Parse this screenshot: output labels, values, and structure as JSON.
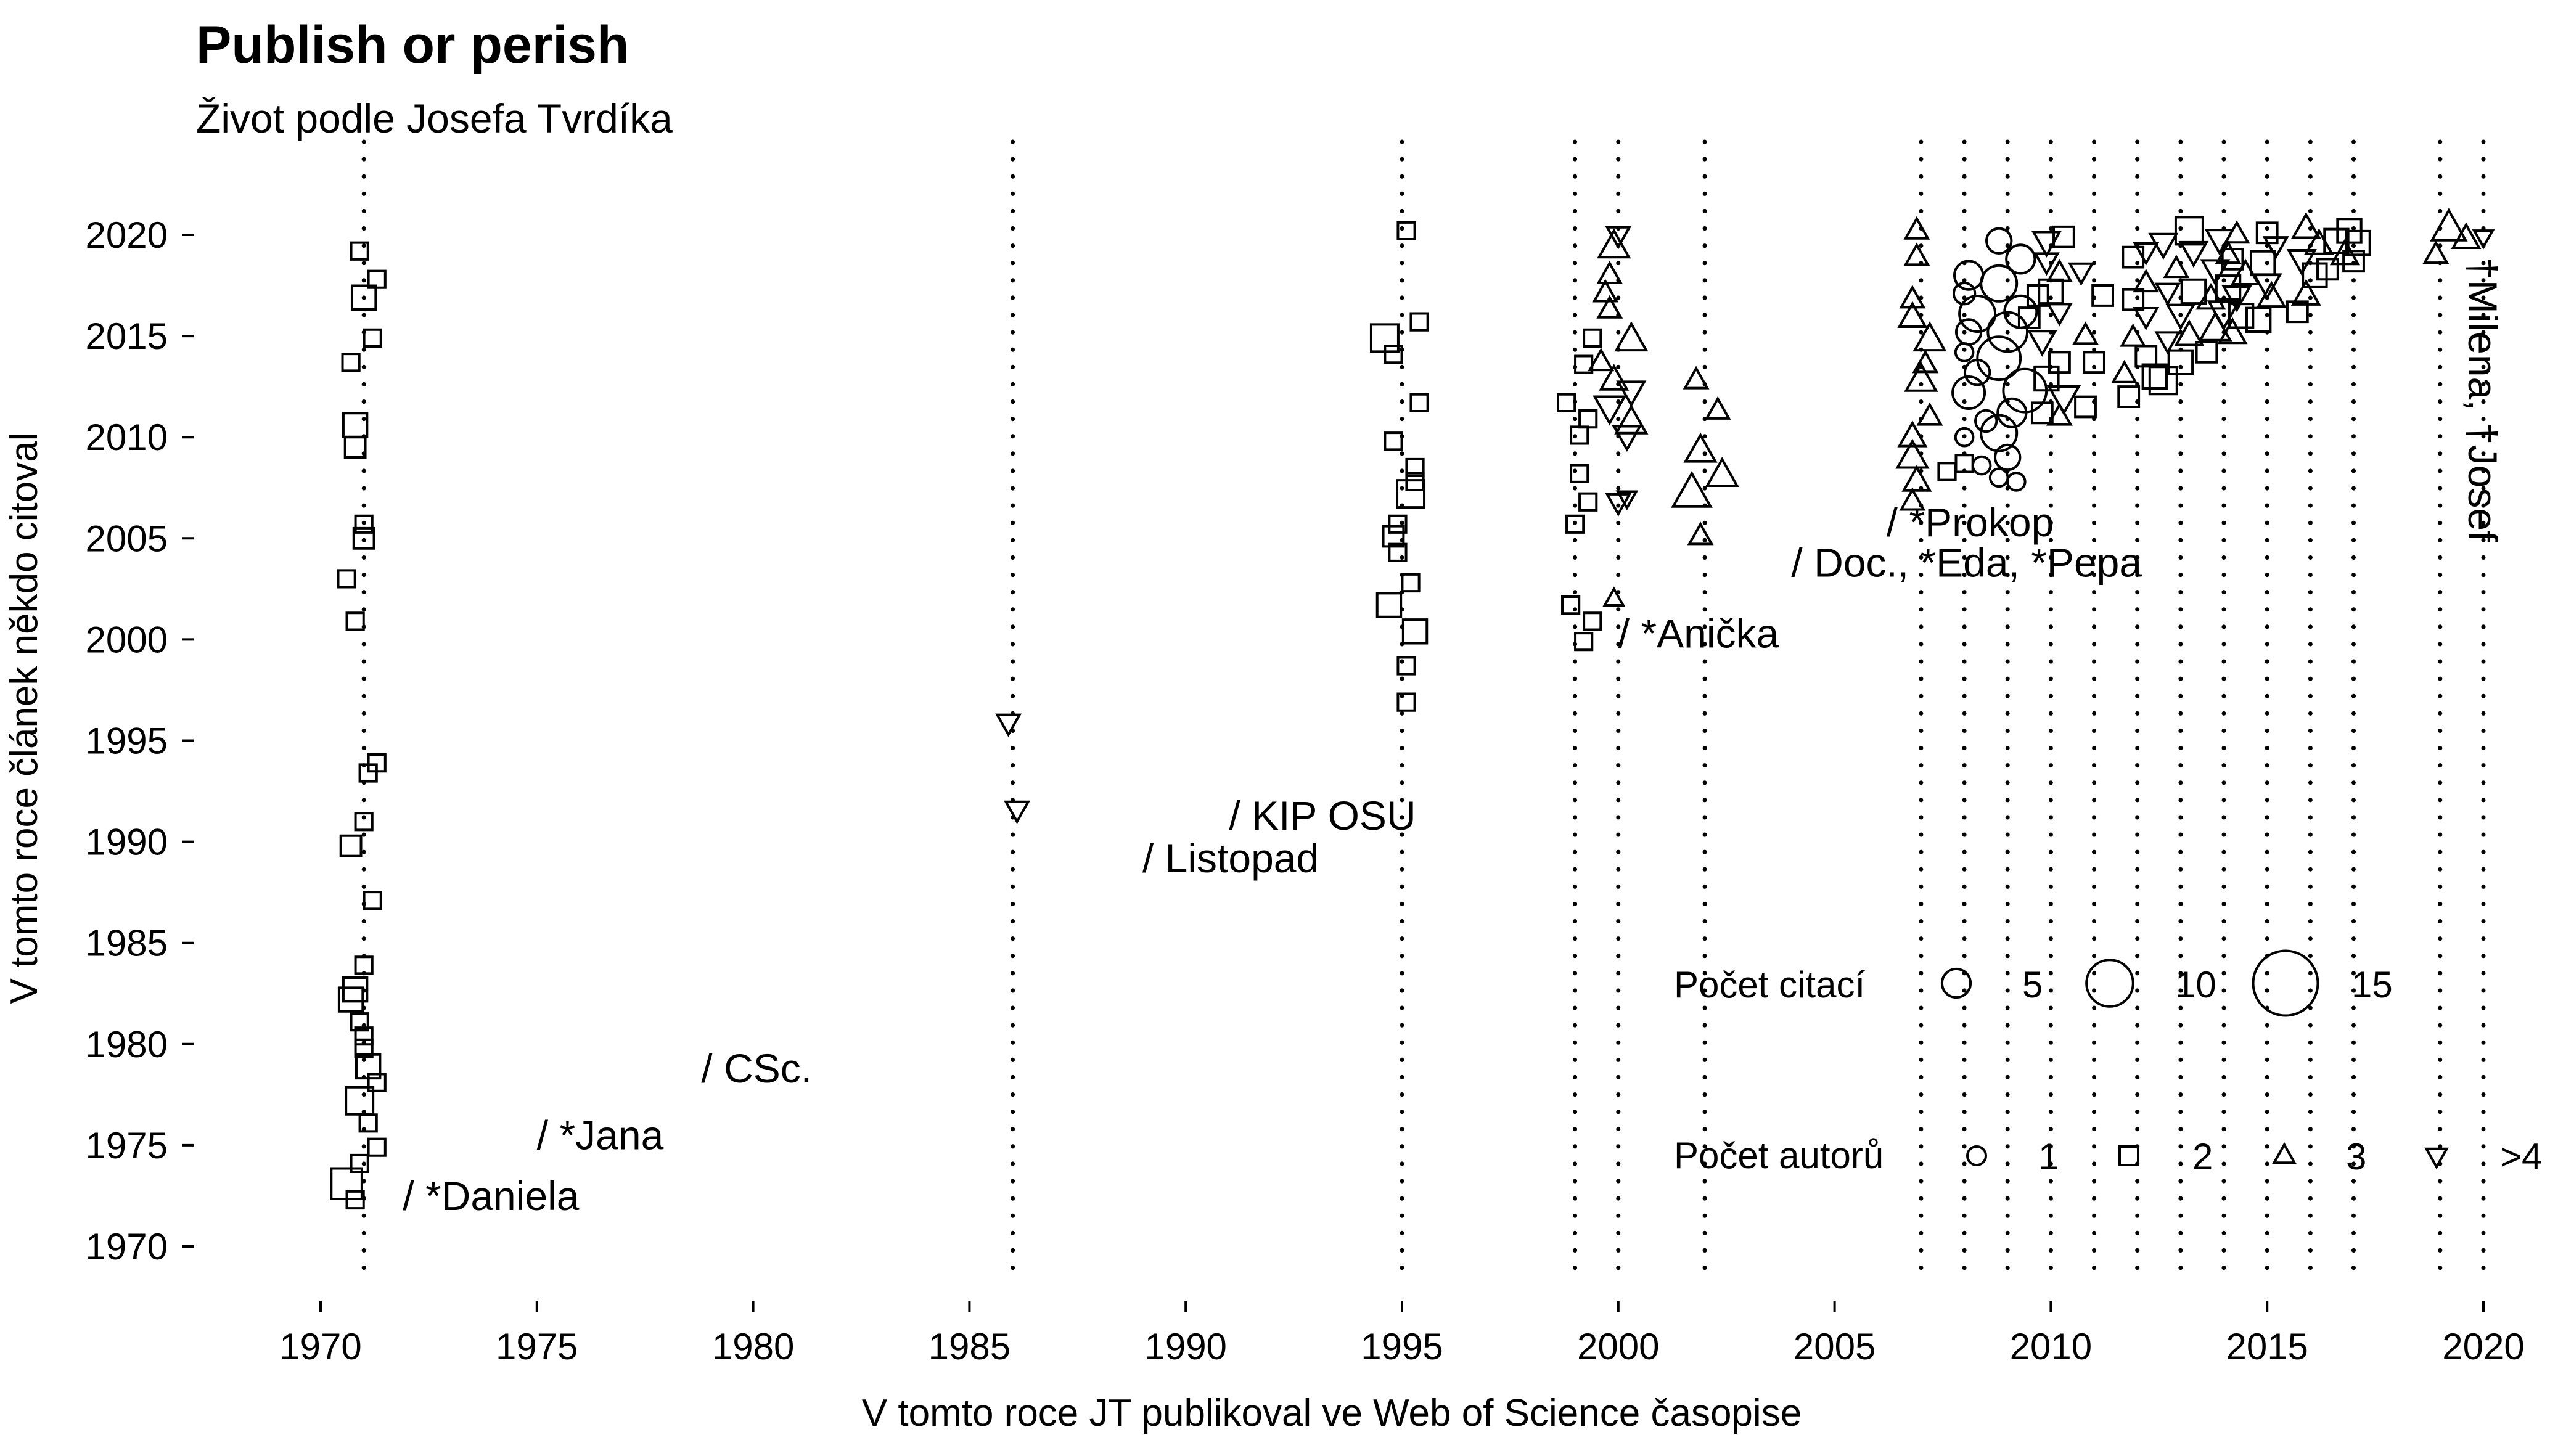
{
  "chart_data": {
    "type": "scatter",
    "title": "Publish or perish",
    "subtitle": "Život podle Josefa Tvrdíka",
    "xlabel": "V tomto roce JT publikoval ve Web of Science časopise",
    "ylabel": "V tomto roce článek někdo citoval",
    "xlim": [
      1967.2,
      2021.2
    ],
    "ylim": [
      1967.5,
      2022.8
    ],
    "xticks": [
      "1970",
      "1975",
      "1980",
      "1985",
      "1990",
      "1995",
      "2000",
      "2005",
      "2010",
      "2015",
      "2020"
    ],
    "yticks": [
      "1970",
      "1975",
      "1980",
      "1985",
      "1990",
      "1995",
      "2000",
      "2005",
      "2010",
      "2015",
      "2020"
    ],
    "grid": false,
    "publication_years": [
      1971,
      1986,
      1995,
      1999,
      2000,
      2002,
      2007,
      2008,
      2009,
      2010,
      2011,
      2012,
      2013,
      2014,
      2015,
      2016,
      2017,
      2019,
      2020
    ],
    "annotations": [
      {
        "x": 1971.9,
        "y": 1971.8,
        "text": "/ *Daniela"
      },
      {
        "x": 1975.0,
        "y": 1974.8,
        "text": "/ *Jana"
      },
      {
        "x": 1978.8,
        "y": 1978.1,
        "text": "/ CSc."
      },
      {
        "x": 1989.0,
        "y": 1988.5,
        "text": "/ Listopad"
      },
      {
        "x": 1991.0,
        "y": 1990.6,
        "text": "/ KIP OSU"
      },
      {
        "x": 2000.0,
        "y": 1999.6,
        "text": "/ *Anička"
      },
      {
        "x": 2006.2,
        "y": 2005.1,
        "text": "/ *Prokop"
      },
      {
        "x": 2004.0,
        "y": 2003.1,
        "text": "/ Doc., *Eda, *Pepa"
      }
    ],
    "vertical_annotation": {
      "x": 2020.0,
      "y": 2018.9,
      "text": "†Milena, †Josef"
    },
    "legend": {
      "placement": "bottom-right",
      "size_title": "Počet citací",
      "size_entries": [
        {
          "label": "5",
          "citations": 5
        },
        {
          "label": "10",
          "citations": 10
        },
        {
          "label": "15",
          "citations": 15
        }
      ],
      "shape_title": "Počet autorů",
      "shape_entries": [
        {
          "label": "1",
          "shape": "circle"
        },
        {
          "label": "2",
          "shape": "square"
        },
        {
          "label": "3",
          "shape": "triangle"
        },
        {
          "label": ">4",
          "shape": "triangle-down"
        }
      ]
    },
    "points": [
      {
        "x": 1970.8,
        "y": 1972.3,
        "a": 2,
        "c": 2
      },
      {
        "x": 1970.6,
        "y": 1973.1,
        "a": 2,
        "c": 6
      },
      {
        "x": 1970.9,
        "y": 1974.1,
        "a": 2,
        "c": 2
      },
      {
        "x": 1971.3,
        "y": 1974.9,
        "a": 2,
        "c": 2
      },
      {
        "x": 1971.1,
        "y": 1976.1,
        "a": 2,
        "c": 2
      },
      {
        "x": 1970.9,
        "y": 1977.2,
        "a": 2,
        "c": 5
      },
      {
        "x": 1971.3,
        "y": 1978.1,
        "a": 2,
        "c": 2
      },
      {
        "x": 1971.1,
        "y": 1978.9,
        "a": 2,
        "c": 4
      },
      {
        "x": 1971.0,
        "y": 1979.8,
        "a": 2,
        "c": 2
      },
      {
        "x": 1971.0,
        "y": 1980.4,
        "a": 2,
        "c": 2
      },
      {
        "x": 1970.9,
        "y": 1981.1,
        "a": 2,
        "c": 2
      },
      {
        "x": 1970.7,
        "y": 1982.2,
        "a": 2,
        "c": 4
      },
      {
        "x": 1970.8,
        "y": 1982.7,
        "a": 2,
        "c": 4
      },
      {
        "x": 1971.0,
        "y": 1983.9,
        "a": 2,
        "c": 2
      },
      {
        "x": 1971.2,
        "y": 1987.1,
        "a": 2,
        "c": 2
      },
      {
        "x": 1970.7,
        "y": 1989.8,
        "a": 2,
        "c": 3
      },
      {
        "x": 1971.0,
        "y": 1991.0,
        "a": 2,
        "c": 2
      },
      {
        "x": 1971.1,
        "y": 1993.4,
        "a": 2,
        "c": 2
      },
      {
        "x": 1971.3,
        "y": 1993.9,
        "a": 2,
        "c": 2
      },
      {
        "x": 1970.8,
        "y": 2000.9,
        "a": 2,
        "c": 2
      },
      {
        "x": 1970.6,
        "y": 2003.0,
        "a": 2,
        "c": 2
      },
      {
        "x": 1971.0,
        "y": 2005.0,
        "a": 2,
        "c": 3
      },
      {
        "x": 1971.0,
        "y": 2005.7,
        "a": 2,
        "c": 2
      },
      {
        "x": 1970.8,
        "y": 2009.5,
        "a": 2,
        "c": 3
      },
      {
        "x": 1970.8,
        "y": 2010.6,
        "a": 2,
        "c": 4
      },
      {
        "x": 1970.7,
        "y": 2013.7,
        "a": 2,
        "c": 2
      },
      {
        "x": 1971.2,
        "y": 2014.9,
        "a": 2,
        "c": 2
      },
      {
        "x": 1971.0,
        "y": 2016.9,
        "a": 2,
        "c": 4
      },
      {
        "x": 1971.3,
        "y": 2017.8,
        "a": 2,
        "c": 2
      },
      {
        "x": 1970.9,
        "y": 2019.2,
        "a": 2,
        "c": 2
      },
      {
        "x": 1985.9,
        "y": 1995.9,
        "a": 4,
        "c": 3
      },
      {
        "x": 1986.1,
        "y": 1991.6,
        "a": 4,
        "c": 3
      },
      {
        "x": 1995.1,
        "y": 1996.9,
        "a": 2,
        "c": 2
      },
      {
        "x": 1995.1,
        "y": 1998.7,
        "a": 2,
        "c": 2
      },
      {
        "x": 1995.3,
        "y": 2000.4,
        "a": 2,
        "c": 4
      },
      {
        "x": 1994.7,
        "y": 2001.7,
        "a": 2,
        "c": 4
      },
      {
        "x": 1995.2,
        "y": 2002.8,
        "a": 2,
        "c": 2
      },
      {
        "x": 1994.9,
        "y": 2004.3,
        "a": 2,
        "c": 2
      },
      {
        "x": 1994.8,
        "y": 2005.1,
        "a": 2,
        "c": 3
      },
      {
        "x": 1994.9,
        "y": 2005.7,
        "a": 2,
        "c": 2
      },
      {
        "x": 1995.2,
        "y": 2007.2,
        "a": 2,
        "c": 5
      },
      {
        "x": 1995.3,
        "y": 2007.8,
        "a": 2,
        "c": 2
      },
      {
        "x": 1995.3,
        "y": 2008.5,
        "a": 2,
        "c": 2
      },
      {
        "x": 1994.8,
        "y": 2009.8,
        "a": 2,
        "c": 2
      },
      {
        "x": 1995.4,
        "y": 2011.7,
        "a": 2,
        "c": 2
      },
      {
        "x": 1994.8,
        "y": 2014.1,
        "a": 2,
        "c": 2
      },
      {
        "x": 1994.6,
        "y": 2014.9,
        "a": 2,
        "c": 5
      },
      {
        "x": 1995.4,
        "y": 2015.7,
        "a": 2,
        "c": 2
      },
      {
        "x": 1995.1,
        "y": 2020.2,
        "a": 2,
        "c": 2
      },
      {
        "x": 1998.9,
        "y": 2001.7,
        "a": 2,
        "c": 2
      },
      {
        "x": 1999.2,
        "y": 1999.9,
        "a": 2,
        "c": 2
      },
      {
        "x": 1999.4,
        "y": 2000.9,
        "a": 2,
        "c": 2
      },
      {
        "x": 1999.0,
        "y": 2005.7,
        "a": 2,
        "c": 2
      },
      {
        "x": 1999.3,
        "y": 2006.8,
        "a": 2,
        "c": 2
      },
      {
        "x": 1999.1,
        "y": 2008.2,
        "a": 2,
        "c": 2
      },
      {
        "x": 1999.1,
        "y": 2010.1,
        "a": 2,
        "c": 2
      },
      {
        "x": 1999.3,
        "y": 2010.9,
        "a": 2,
        "c": 2
      },
      {
        "x": 1998.8,
        "y": 2011.7,
        "a": 2,
        "c": 2
      },
      {
        "x": 1999.2,
        "y": 2013.6,
        "a": 2,
        "c": 2
      },
      {
        "x": 1999.4,
        "y": 2014.9,
        "a": 2,
        "c": 2
      },
      {
        "x": 1999.9,
        "y": 2002.0,
        "a": 3,
        "c": 2
      },
      {
        "x": 2000.0,
        "y": 2006.8,
        "a": 4,
        "c": 3
      },
      {
        "x": 2000.2,
        "y": 2007.0,
        "a": 4,
        "c": 2
      },
      {
        "x": 2000.2,
        "y": 2010.1,
        "a": 4,
        "c": 4
      },
      {
        "x": 2000.3,
        "y": 2010.7,
        "a": 3,
        "c": 5
      },
      {
        "x": 1999.8,
        "y": 2011.5,
        "a": 4,
        "c": 5
      },
      {
        "x": 2000.3,
        "y": 2012.3,
        "a": 4,
        "c": 4
      },
      {
        "x": 1999.9,
        "y": 2012.8,
        "a": 3,
        "c": 4
      },
      {
        "x": 1999.6,
        "y": 2013.7,
        "a": 3,
        "c": 3
      },
      {
        "x": 2000.3,
        "y": 2014.8,
        "a": 3,
        "c": 5
      },
      {
        "x": 1999.8,
        "y": 2016.3,
        "a": 3,
        "c": 3
      },
      {
        "x": 1999.7,
        "y": 2017.1,
        "a": 3,
        "c": 3
      },
      {
        "x": 1999.8,
        "y": 2018.0,
        "a": 3,
        "c": 3
      },
      {
        "x": 1999.9,
        "y": 2019.4,
        "a": 3,
        "c": 5
      },
      {
        "x": 2000.0,
        "y": 2020.0,
        "a": 4,
        "c": 3
      },
      {
        "x": 2001.9,
        "y": 2005.1,
        "a": 3,
        "c": 3
      },
      {
        "x": 2001.7,
        "y": 2007.2,
        "a": 3,
        "c": 7
      },
      {
        "x": 2002.4,
        "y": 2008.1,
        "a": 3,
        "c": 5
      },
      {
        "x": 2001.9,
        "y": 2009.3,
        "a": 3,
        "c": 5
      },
      {
        "x": 2002.3,
        "y": 2011.3,
        "a": 3,
        "c": 3
      },
      {
        "x": 2001.8,
        "y": 2012.8,
        "a": 3,
        "c": 3
      },
      {
        "x": 2006.8,
        "y": 2006.8,
        "a": 3,
        "c": 3
      },
      {
        "x": 2006.9,
        "y": 2007.8,
        "a": 3,
        "c": 4
      },
      {
        "x": 2006.8,
        "y": 2009.0,
        "a": 3,
        "c": 5
      },
      {
        "x": 2006.8,
        "y": 2010.0,
        "a": 3,
        "c": 4
      },
      {
        "x": 2007.2,
        "y": 2011.0,
        "a": 3,
        "c": 3
      },
      {
        "x": 2007.0,
        "y": 2012.8,
        "a": 3,
        "c": 5
      },
      {
        "x": 2007.1,
        "y": 2013.6,
        "a": 3,
        "c": 3
      },
      {
        "x": 2007.2,
        "y": 2014.8,
        "a": 3,
        "c": 5
      },
      {
        "x": 2006.8,
        "y": 2015.9,
        "a": 3,
        "c": 4
      },
      {
        "x": 2006.8,
        "y": 2016.8,
        "a": 3,
        "c": 3
      },
      {
        "x": 2006.9,
        "y": 2018.9,
        "a": 3,
        "c": 3
      },
      {
        "x": 2006.9,
        "y": 2020.2,
        "a": 3,
        "c": 3
      },
      {
        "x": 2007.6,
        "y": 2008.3,
        "a": 2,
        "c": 2
      },
      {
        "x": 2008.0,
        "y": 2008.7,
        "a": 2,
        "c": 2
      },
      {
        "x": 2008.0,
        "y": 2010.0,
        "a": 1,
        "c": 2
      },
      {
        "x": 2008.4,
        "y": 2008.6,
        "a": 1,
        "c": 2
      },
      {
        "x": 2008.8,
        "y": 2008.0,
        "a": 1,
        "c": 2
      },
      {
        "x": 2008.5,
        "y": 2010.8,
        "a": 1,
        "c": 3
      },
      {
        "x": 2008.1,
        "y": 2012.2,
        "a": 1,
        "c": 6
      },
      {
        "x": 2008.3,
        "y": 2013.2,
        "a": 1,
        "c": 4
      },
      {
        "x": 2008.0,
        "y": 2014.2,
        "a": 1,
        "c": 2
      },
      {
        "x": 2008.1,
        "y": 2015.2,
        "a": 1,
        "c": 4
      },
      {
        "x": 2008.3,
        "y": 2016.1,
        "a": 1,
        "c": 7
      },
      {
        "x": 2008.0,
        "y": 2017.1,
        "a": 1,
        "c": 3
      },
      {
        "x": 2008.1,
        "y": 2018.0,
        "a": 1,
        "c": 5
      },
      {
        "x": 2009.2,
        "y": 2007.8,
        "a": 1,
        "c": 2
      },
      {
        "x": 2009.0,
        "y": 2009.0,
        "a": 1,
        "c": 4
      },
      {
        "x": 2008.8,
        "y": 2010.2,
        "a": 1,
        "c": 7
      },
      {
        "x": 2009.1,
        "y": 2011.2,
        "a": 1,
        "c": 5
      },
      {
        "x": 2009.4,
        "y": 2012.3,
        "a": 1,
        "c": 9
      },
      {
        "x": 2008.8,
        "y": 2013.9,
        "a": 1,
        "c": 9
      },
      {
        "x": 2009.0,
        "y": 2015.2,
        "a": 1,
        "c": 8
      },
      {
        "x": 2009.3,
        "y": 2016.2,
        "a": 1,
        "c": 6
      },
      {
        "x": 2008.8,
        "y": 2017.6,
        "a": 1,
        "c": 7
      },
      {
        "x": 2009.3,
        "y": 2018.8,
        "a": 1,
        "c": 5
      },
      {
        "x": 2008.8,
        "y": 2019.7,
        "a": 1,
        "c": 4
      },
      {
        "x": 2009.5,
        "y": 2015.9,
        "a": 2,
        "c": 3
      },
      {
        "x": 2009.8,
        "y": 2011.2,
        "a": 2,
        "c": 3
      },
      {
        "x": 2009.7,
        "y": 2017.0,
        "a": 2,
        "c": 3
      },
      {
        "x": 2009.9,
        "y": 2018.7,
        "a": 4,
        "c": 3
      },
      {
        "x": 2010.2,
        "y": 2011.0,
        "a": 3,
        "c": 3
      },
      {
        "x": 2010.3,
        "y": 2012.0,
        "a": 4,
        "c": 5
      },
      {
        "x": 2009.9,
        "y": 2012.9,
        "a": 2,
        "c": 4
      },
      {
        "x": 2010.2,
        "y": 2013.7,
        "a": 2,
        "c": 3
      },
      {
        "x": 2009.8,
        "y": 2014.8,
        "a": 4,
        "c": 4
      },
      {
        "x": 2010.2,
        "y": 2016.2,
        "a": 4,
        "c": 3
      },
      {
        "x": 2010.0,
        "y": 2017.2,
        "a": 2,
        "c": 4
      },
      {
        "x": 2010.2,
        "y": 2018.1,
        "a": 3,
        "c": 3
      },
      {
        "x": 2009.9,
        "y": 2019.7,
        "a": 4,
        "c": 4
      },
      {
        "x": 2010.3,
        "y": 2019.9,
        "a": 2,
        "c": 3
      },
      {
        "x": 2010.8,
        "y": 2011.5,
        "a": 2,
        "c": 3
      },
      {
        "x": 2011.0,
        "y": 2013.7,
        "a": 2,
        "c": 3
      },
      {
        "x": 2010.8,
        "y": 2015.0,
        "a": 3,
        "c": 3
      },
      {
        "x": 2011.2,
        "y": 2017.0,
        "a": 2,
        "c": 3
      },
      {
        "x": 2010.7,
        "y": 2018.2,
        "a": 4,
        "c": 3
      },
      {
        "x": 2011.8,
        "y": 2012.0,
        "a": 2,
        "c": 3
      },
      {
        "x": 2011.7,
        "y": 2013.1,
        "a": 3,
        "c": 3
      },
      {
        "x": 2012.2,
        "y": 2014.0,
        "a": 2,
        "c": 3
      },
      {
        "x": 2011.9,
        "y": 2014.9,
        "a": 3,
        "c": 3
      },
      {
        "x": 2012.2,
        "y": 2016.0,
        "a": 4,
        "c": 3
      },
      {
        "x": 2011.9,
        "y": 2016.8,
        "a": 2,
        "c": 3
      },
      {
        "x": 2012.2,
        "y": 2017.6,
        "a": 3,
        "c": 3
      },
      {
        "x": 2011.9,
        "y": 2018.9,
        "a": 2,
        "c": 3
      },
      {
        "x": 2012.2,
        "y": 2019.2,
        "a": 4,
        "c": 3
      },
      {
        "x": 2012.4,
        "y": 2013.0,
        "a": 2,
        "c": 4
      },
      {
        "x": 2012.6,
        "y": 2012.8,
        "a": 2,
        "c": 5
      },
      {
        "x": 2012.7,
        "y": 2014.8,
        "a": 4,
        "c": 3
      },
      {
        "x": 2012.7,
        "y": 2017.2,
        "a": 4,
        "c": 3
      },
      {
        "x": 2012.6,
        "y": 2019.6,
        "a": 4,
        "c": 4
      },
      {
        "x": 2013.0,
        "y": 2013.7,
        "a": 2,
        "c": 4
      },
      {
        "x": 2013.2,
        "y": 2015.0,
        "a": 3,
        "c": 4
      },
      {
        "x": 2013.0,
        "y": 2016.1,
        "a": 4,
        "c": 4
      },
      {
        "x": 2013.3,
        "y": 2017.2,
        "a": 2,
        "c": 4
      },
      {
        "x": 2012.9,
        "y": 2018.3,
        "a": 3,
        "c": 3
      },
      {
        "x": 2013.3,
        "y": 2019.2,
        "a": 4,
        "c": 4
      },
      {
        "x": 2013.2,
        "y": 2020.2,
        "a": 2,
        "c": 5
      },
      {
        "x": 2013.6,
        "y": 2014.2,
        "a": 2,
        "c": 3
      },
      {
        "x": 2013.8,
        "y": 2015.3,
        "a": 3,
        "c": 5
      },
      {
        "x": 2014.0,
        "y": 2016.2,
        "a": 4,
        "c": 5
      },
      {
        "x": 2013.7,
        "y": 2016.8,
        "a": 3,
        "c": 4
      },
      {
        "x": 2014.1,
        "y": 2017.4,
        "a": 2,
        "c": 4
      },
      {
        "x": 2013.8,
        "y": 2018.3,
        "a": 4,
        "c": 4
      },
      {
        "x": 2014.1,
        "y": 2019.0,
        "a": 3,
        "c": 3
      },
      {
        "x": 2013.9,
        "y": 2019.8,
        "a": 4,
        "c": 4
      },
      {
        "x": 2014.3,
        "y": 2020.0,
        "a": 3,
        "c": 3
      },
      {
        "x": 2014.2,
        "y": 2015.1,
        "a": 3,
        "c": 4
      },
      {
        "x": 2014.4,
        "y": 2016.0,
        "a": 2,
        "c": 4
      },
      {
        "x": 2014.3,
        "y": 2017.0,
        "a": 4,
        "c": 4
      },
      {
        "x": 2014.5,
        "y": 2018.0,
        "a": 3,
        "c": 4
      },
      {
        "x": 2014.2,
        "y": 2018.8,
        "a": 2,
        "c": 3
      },
      {
        "x": 2014.8,
        "y": 2015.8,
        "a": 2,
        "c": 4
      },
      {
        "x": 2015.1,
        "y": 2016.9,
        "a": 3,
        "c": 4
      },
      {
        "x": 2015.0,
        "y": 2017.6,
        "a": 4,
        "c": 4
      },
      {
        "x": 2014.9,
        "y": 2018.6,
        "a": 2,
        "c": 4
      },
      {
        "x": 2015.2,
        "y": 2019.5,
        "a": 4,
        "c": 3
      },
      {
        "x": 2015.0,
        "y": 2020.1,
        "a": 2,
        "c": 3
      },
      {
        "x": 2015.7,
        "y": 2016.2,
        "a": 2,
        "c": 3
      },
      {
        "x": 2015.9,
        "y": 2017.0,
        "a": 3,
        "c": 4
      },
      {
        "x": 2016.1,
        "y": 2018.0,
        "a": 2,
        "c": 4
      },
      {
        "x": 2015.8,
        "y": 2018.8,
        "a": 4,
        "c": 4
      },
      {
        "x": 2016.2,
        "y": 2019.5,
        "a": 3,
        "c": 4
      },
      {
        "x": 2015.9,
        "y": 2020.3,
        "a": 3,
        "c": 4
      },
      {
        "x": 2016.4,
        "y": 2018.3,
        "a": 2,
        "c": 3
      },
      {
        "x": 2016.8,
        "y": 2019.0,
        "a": 3,
        "c": 4
      },
      {
        "x": 2016.6,
        "y": 2019.7,
        "a": 2,
        "c": 4
      },
      {
        "x": 2017.0,
        "y": 2018.7,
        "a": 2,
        "c": 3
      },
      {
        "x": 2017.1,
        "y": 2019.6,
        "a": 2,
        "c": 4
      },
      {
        "x": 2016.9,
        "y": 2020.2,
        "a": 2,
        "c": 4
      },
      {
        "x": 2018.9,
        "y": 2019.0,
        "a": 3,
        "c": 3
      },
      {
        "x": 2019.2,
        "y": 2020.3,
        "a": 3,
        "c": 6
      },
      {
        "x": 2019.6,
        "y": 2019.8,
        "a": 3,
        "c": 4
      },
      {
        "x": 2020.0,
        "y": 2019.9,
        "a": 4,
        "c": 2
      }
    ]
  }
}
